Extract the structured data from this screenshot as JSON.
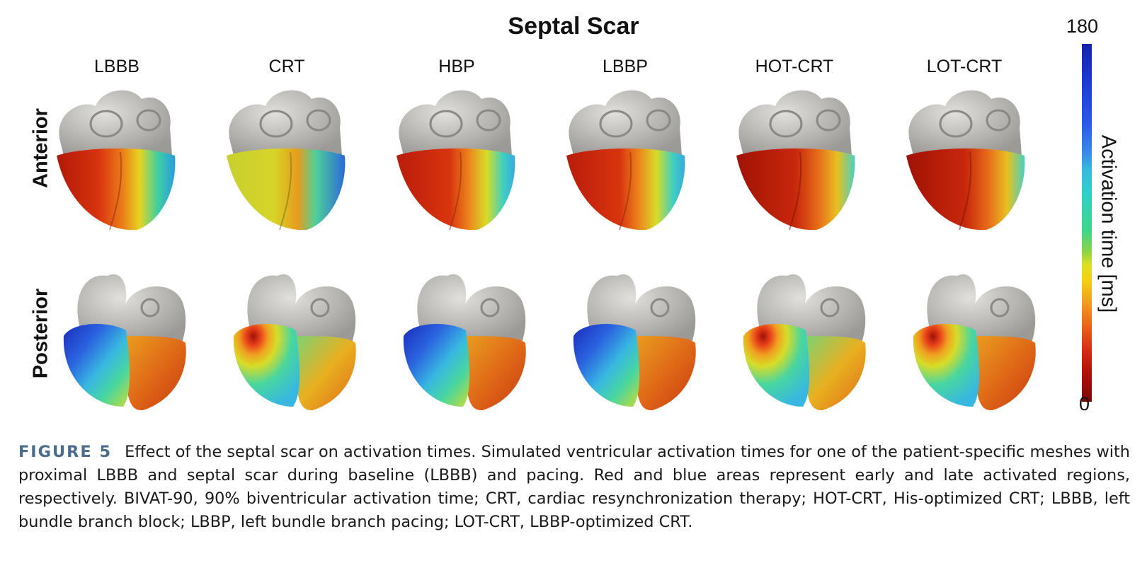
{
  "figure": {
    "title": "Septal Scar",
    "columns": [
      "LBBB",
      "CRT",
      "HBP",
      "LBBP",
      "HOT-CRT",
      "LOT-CRT"
    ],
    "rows": [
      "Anterior",
      "Posterior"
    ],
    "colorbar": {
      "label": "Activation time [ms]",
      "max": "180",
      "min": "0",
      "colors": [
        "#1224a8",
        "#2a58e8",
        "#38b8e0",
        "#3ed68a",
        "#dfe024",
        "#f0a020",
        "#d52a14",
        "#7a0a08"
      ]
    }
  },
  "caption": {
    "label": "FIGURE 5",
    "text": "Effect of the septal scar on activation times. Simulated ventricular activation times for one of the patient-specific meshes with proximal LBBB and septal scar during baseline (LBBB) and pacing. Red and blue areas represent early and late activated regions, respectively. BIVAT-90, 90% biventricular activation time; CRT, cardiac resynchronization therapy; HOT-CRT, His-optimized CRT; LBBB, left bundle branch block; LBBP, left bundle branch pacing; LOT-CRT, LBBP-optimized CRT."
  }
}
